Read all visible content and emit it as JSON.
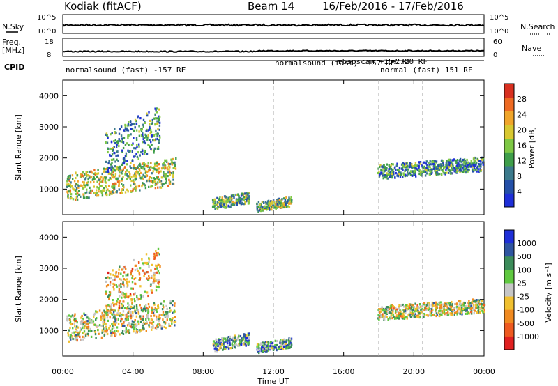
{
  "header": {
    "station": "Kodiak (fitACF)",
    "beam": "Beam 14",
    "date_range": "16/Feb/2016 - 17/Feb/2016"
  },
  "top_panels": {
    "nsky_label": "N.Sky",
    "nsky_ticks": [
      "10^5",
      "10^0"
    ],
    "nsearch_label": "N.Search",
    "nsearch_ticks": [
      "10^5",
      "10^0"
    ],
    "freq_label_line1": "Freq.",
    "freq_label_line2": "[MHz]",
    "freq_ticks": [
      "18",
      "8"
    ],
    "nave_label": "Nave",
    "nave_ticks": [
      "60",
      "0"
    ],
    "cpid_label": "CPID"
  },
  "cpid_segments": [
    {
      "start": 0.0,
      "text": "normalsound (fast) -157 RF"
    },
    {
      "start": 12.0,
      "text": "normalsound (fast) -157 RF"
    },
    {
      "start": 12.0,
      "text": "rbspscan +157 RF"
    },
    {
      "start": 18.0,
      "text": "normal (fast) 151 RF"
    },
    {
      "start": 18.0,
      "text": "+2720 RF"
    }
  ],
  "chart_data": [
    {
      "type": "heatmap",
      "name": "power",
      "ylabel": "Slant Range [km]",
      "xlabel": "Time UT",
      "x_ticks": [
        "00:00",
        "04:00",
        "08:00",
        "12:00",
        "16:00",
        "20:00",
        "00:00"
      ],
      "x_tick_hours": [
        0,
        4,
        8,
        12,
        16,
        20,
        24
      ],
      "xlim": [
        0,
        24
      ],
      "y_ticks": [
        1000,
        2000,
        3000,
        4000
      ],
      "ylim": [
        180,
        4500
      ],
      "colorbar_label": "Power [dB]",
      "colorbar_ticks": [
        4,
        8,
        12,
        16,
        20,
        24,
        28
      ],
      "colorbar_range": [
        0,
        32
      ],
      "colors": [
        "#1e2fd8",
        "#2450a8",
        "#3c7a8c",
        "#3f9e4a",
        "#7ec845",
        "#d8c830",
        "#f0a52a",
        "#ee6a22",
        "#d83020"
      ],
      "regions": [
        {
          "t0": 0.2,
          "t1": 6.4,
          "r0": 650,
          "r1": 1900,
          "level": 0.55
        },
        {
          "t0": 2.4,
          "t1": 5.5,
          "r0": 1500,
          "r1": 3500,
          "level": 0.3
        },
        {
          "t0": 8.5,
          "t1": 10.6,
          "r0": 350,
          "r1": 900,
          "level": 0.4
        },
        {
          "t0": 11.0,
          "t1": 13.0,
          "r0": 300,
          "r1": 750,
          "level": 0.45
        },
        {
          "t0": 17.9,
          "t1": 24.0,
          "r0": 1350,
          "r1": 2000,
          "level": 0.3
        }
      ]
    },
    {
      "type": "heatmap",
      "name": "velocity",
      "ylabel": "Slant Range [km]",
      "xlabel": "Time UT",
      "x_ticks": [
        "00:00",
        "04:00",
        "08:00",
        "12:00",
        "16:00",
        "20:00",
        "00:00"
      ],
      "x_tick_hours": [
        0,
        4,
        8,
        12,
        16,
        20,
        24
      ],
      "xlim": [
        0,
        24
      ],
      "y_ticks": [
        1000,
        2000,
        3000,
        4000
      ],
      "ylim": [
        180,
        4500
      ],
      "colorbar_label": "Velocity [m s⁻¹]",
      "colorbar_ticks": [
        "1000",
        "500",
        "100",
        "25",
        "-25",
        "-100",
        "-500",
        "-1000"
      ],
      "colors": [
        "#1e2fd8",
        "#2f55a0",
        "#3c8c5a",
        "#5fc840",
        "#c6c6c6",
        "#f0c030",
        "#f08a20",
        "#ee5a20",
        "#e02020"
      ],
      "regions": [
        {
          "t0": 0.2,
          "t1": 6.4,
          "r0": 650,
          "r1": 1900,
          "level": 0.5
        },
        {
          "t0": 2.4,
          "t1": 5.5,
          "r0": 1500,
          "r1": 3500,
          "level": 0.6
        },
        {
          "t0": 8.5,
          "t1": 10.6,
          "r0": 350,
          "r1": 900,
          "level": 0.3
        },
        {
          "t0": 11.0,
          "t1": 13.0,
          "r0": 300,
          "r1": 750,
          "level": 0.3
        },
        {
          "t0": 17.9,
          "t1": 24.0,
          "r0": 1350,
          "r1": 2000,
          "level": 0.5
        }
      ]
    }
  ]
}
